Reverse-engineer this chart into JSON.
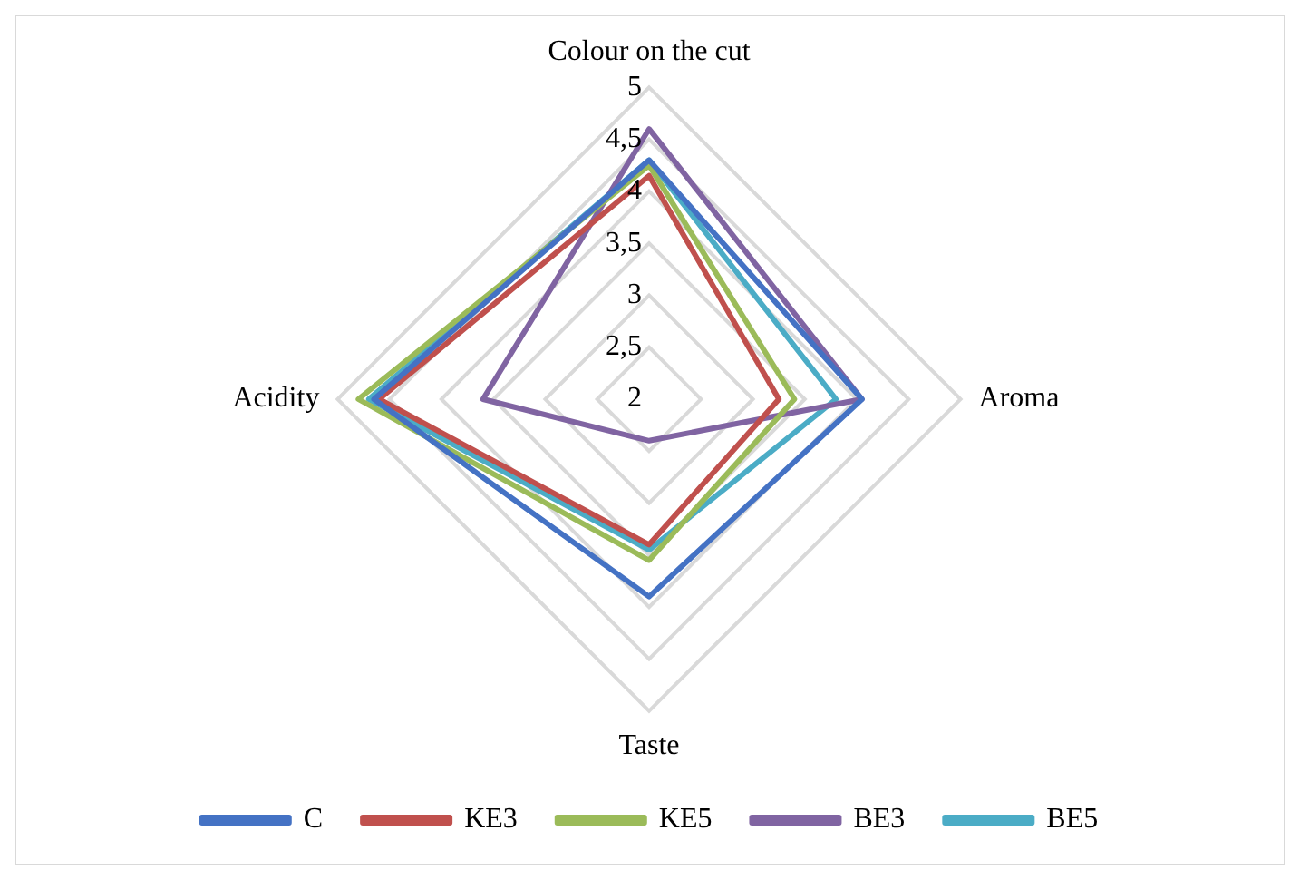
{
  "chart_data": {
    "type": "radar",
    "categories": [
      "Colour on the cut",
      "Aroma",
      "Taste",
      "Acidity"
    ],
    "series": [
      {
        "name": "C",
        "color": "#4472c4",
        "values": [
          4.3,
          4.05,
          3.9,
          4.65
        ]
      },
      {
        "name": "KE3",
        "color": "#c0504d",
        "values": [
          4.15,
          3.25,
          3.4,
          4.6
        ]
      },
      {
        "name": "KE5",
        "color": "#9bbb59",
        "values": [
          4.25,
          3.4,
          3.55,
          4.8
        ]
      },
      {
        "name": "BE3",
        "color": "#8064a2",
        "values": [
          4.6,
          4.05,
          2.4,
          3.6
        ]
      },
      {
        "name": "BE5",
        "color": "#4bacc6",
        "values": [
          4.3,
          3.8,
          3.45,
          4.7
        ]
      }
    ],
    "ylim": [
      2,
      5
    ],
    "yticks": [
      2,
      {
        "value": 2.5,
        "label": "2,5"
      },
      3,
      {
        "value": 3.5,
        "label": "3,5"
      },
      4,
      {
        "value": 4.5,
        "label": "4,5"
      },
      5
    ],
    "grid": true,
    "legend": "bottom",
    "marker": "none",
    "line_style": "solid"
  }
}
